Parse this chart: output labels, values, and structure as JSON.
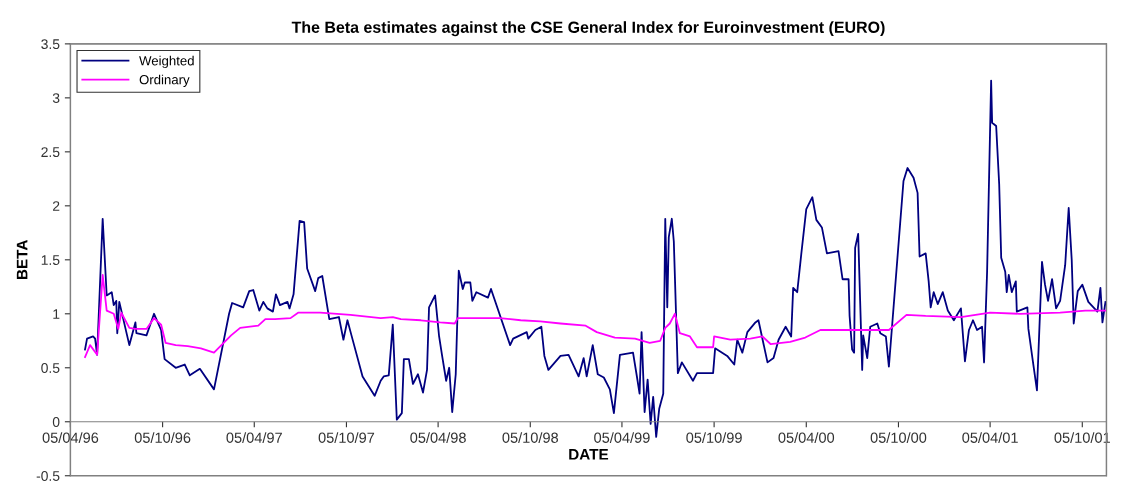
{
  "chart_data": {
    "type": "line",
    "title": "The Beta estimates against the CSE General Index for Euroinvestment (EURO)",
    "xlabel": "DATE",
    "ylabel": "BETA",
    "xlim": [
      "1996-04-05",
      "2001-11-22"
    ],
    "xticks": [
      {
        "value": "1996-04-05",
        "label": "05/04/96"
      },
      {
        "value": "1996-10-05",
        "label": "05/10/96"
      },
      {
        "value": "1997-04-05",
        "label": "05/04/97"
      },
      {
        "value": "1997-10-05",
        "label": "05/10/97"
      },
      {
        "value": "1998-04-05",
        "label": "05/04/98"
      },
      {
        "value": "1998-10-05",
        "label": "05/10/98"
      },
      {
        "value": "1999-04-05",
        "label": "05/04/99"
      },
      {
        "value": "1999-10-05",
        "label": "05/10/99"
      },
      {
        "value": "2000-04-05",
        "label": "05/04/00"
      },
      {
        "value": "2000-10-05",
        "label": "05/10/00"
      },
      {
        "value": "2001-04-05",
        "label": "05/04/01"
      },
      {
        "value": "2001-10-05",
        "label": "05/10/01"
      }
    ],
    "ylim": [
      -0.5,
      3.5
    ],
    "yticks": [
      -0.5,
      0,
      0.5,
      1,
      1.5,
      2,
      2.5,
      3,
      3.5
    ],
    "grid": false,
    "legend": "top left",
    "marker": "none",
    "line_style": "solid",
    "series": [
      {
        "name": "Weighted",
        "color": "#000080",
        "x": [
          "1996-05-04",
          "1996-05-08",
          "1996-05-20",
          "1996-05-24",
          "1996-05-28",
          "1996-06-08",
          "1996-06-16",
          "1996-06-26",
          "1996-06-30",
          "1996-07-05",
          "1996-07-07",
          "1996-07-11",
          "1996-07-31",
          "1996-08-12",
          "1996-08-14",
          "1996-09-03",
          "1996-09-18",
          "1996-10-02",
          "1996-10-09",
          "1996-10-31",
          "1996-11-18",
          "1996-11-28",
          "1996-12-18",
          "1997-01-15",
          "1997-02-14",
          "1997-02-20",
          "1997-03-14",
          "1997-03-26",
          "1997-04-03",
          "1997-04-15",
          "1997-04-23",
          "1997-05-01",
          "1997-05-12",
          "1997-05-18",
          "1997-05-26",
          "1997-06-10",
          "1997-06-14",
          "1997-06-22",
          "1997-07-04",
          "1997-07-13",
          "1997-07-19",
          "1997-08-04",
          "1997-08-10",
          "1997-08-18",
          "1997-09-01",
          "1997-09-20",
          "1997-09-29",
          "1997-10-07",
          "1997-10-15",
          "1997-11-06",
          "1997-11-30",
          "1997-12-12",
          "1997-12-18",
          "1997-12-28",
          "1998-01-05",
          "1998-01-13",
          "1998-01-23",
          "1998-01-27",
          "1998-02-06",
          "1998-02-14",
          "1998-02-24",
          "1998-03-06",
          "1998-03-14",
          "1998-03-18",
          "1998-03-30",
          "1998-04-07",
          "1998-04-13",
          "1998-04-21",
          "1998-04-27",
          "1998-05-03",
          "1998-05-10",
          "1998-05-16",
          "1998-05-24",
          "1998-05-28",
          "1998-06-08",
          "1998-06-12",
          "1998-06-20",
          "1998-07-13",
          "1998-07-19",
          "1998-08-26",
          "1998-09-01",
          "1998-09-28",
          "1998-10-01",
          "1998-10-15",
          "1998-10-27",
          "1998-11-02",
          "1998-11-10",
          "1998-12-04",
          "1998-12-20",
          "1999-01-09",
          "1999-01-19",
          "1999-01-25",
          "1999-02-06",
          "1999-02-16",
          "1999-02-28",
          "1999-03-12",
          "1999-03-20",
          "1999-04-01",
          "1999-04-27",
          "1999-05-05",
          "1999-05-10",
          "1999-05-14",
          "1999-05-20",
          "1999-05-26",
          "1999-06-01",
          "1999-06-06",
          "1999-06-12",
          "1999-06-18",
          "1999-06-26",
          "1999-06-30",
          "1999-07-04",
          "1999-07-07",
          "1999-07-13",
          "1999-07-17",
          "1999-07-25",
          "1999-08-02",
          "1999-08-24",
          "1999-09-01",
          "1999-10-03",
          "1999-10-07",
          "1999-10-31",
          "1999-11-14",
          "1999-11-20",
          "1999-11-30",
          "1999-12-10",
          "1999-12-26",
          "2000-01-01",
          "2000-01-19",
          "2000-01-31",
          "2000-02-10",
          "2000-02-24",
          "2000-03-06",
          "2000-03-10",
          "2000-03-18",
          "2000-03-26",
          "2000-04-05",
          "2000-04-17",
          "2000-04-25",
          "2000-05-06",
          "2000-05-16",
          "2000-06-08",
          "2000-06-16",
          "2000-06-28",
          "2000-06-30",
          "2000-07-05",
          "2000-07-09",
          "2000-07-11",
          "2000-07-17",
          "2000-07-25",
          "2000-07-27",
          "2000-08-04",
          "2000-08-10",
          "2000-08-24",
          "2000-08-30",
          "2000-09-10",
          "2000-09-16",
          "2000-10-15",
          "2000-10-23",
          "2000-11-04",
          "2000-11-12",
          "2000-11-16",
          "2000-11-28",
          "2000-12-04",
          "2000-12-08",
          "2000-12-14",
          "2000-12-22",
          "2001-01-01",
          "2001-01-11",
          "2001-01-23",
          "2001-02-06",
          "2001-02-14",
          "2001-02-22",
          "2001-03-02",
          "2001-03-10",
          "2001-03-20",
          "2001-03-24",
          "2001-03-30",
          "2001-04-07",
          "2001-04-09",
          "2001-04-17",
          "2001-04-23",
          "2001-04-27",
          "2001-05-05",
          "2001-05-08",
          "2001-05-12",
          "2001-05-18",
          "2001-05-26",
          "2001-05-28",
          "2001-06-18",
          "2001-06-20",
          "2001-06-28",
          "2001-07-07",
          "2001-07-17",
          "2001-07-23",
          "2001-07-29",
          "2001-08-06",
          "2001-08-14",
          "2001-08-22",
          "2001-09-01",
          "2001-09-08",
          "2001-09-14",
          "2001-09-18",
          "2001-09-26",
          "2001-10-05",
          "2001-10-17",
          "2001-11-04",
          "2001-11-10",
          "2001-11-14",
          "2001-11-20"
        ],
        "values": [
          0.67,
          0.77,
          0.79,
          0.77,
          0.62,
          1.88,
          1.17,
          1.2,
          1.08,
          1.12,
          0.82,
          1.11,
          0.71,
          0.92,
          0.82,
          0.8,
          1.0,
          0.85,
          0.58,
          0.5,
          0.53,
          0.43,
          0.49,
          0.3,
          1.0,
          1.1,
          1.06,
          1.21,
          1.22,
          1.03,
          1.11,
          1.05,
          1.02,
          1.18,
          1.08,
          1.11,
          1.05,
          1.18,
          1.86,
          1.85,
          1.42,
          1.21,
          1.33,
          1.35,
          0.95,
          0.97,
          0.76,
          0.94,
          0.8,
          0.42,
          0.24,
          0.38,
          0.42,
          0.43,
          0.9,
          0.02,
          0.08,
          0.58,
          0.58,
          0.35,
          0.44,
          0.27,
          0.48,
          1.06,
          1.17,
          0.79,
          0.61,
          0.38,
          0.5,
          0.09,
          0.44,
          1.4,
          1.23,
          1.29,
          1.29,
          1.12,
          1.2,
          1.15,
          1.23,
          0.71,
          0.77,
          0.83,
          0.77,
          0.85,
          0.88,
          0.61,
          0.48,
          0.61,
          0.62,
          0.42,
          0.59,
          0.42,
          0.71,
          0.44,
          0.41,
          0.3,
          0.08,
          0.62,
          0.64,
          0.41,
          0.26,
          0.83,
          0.09,
          0.39,
          -0.02,
          0.23,
          -0.14,
          0.12,
          0.26,
          1.88,
          1.06,
          1.71,
          1.88,
          1.67,
          0.45,
          0.55,
          0.38,
          0.45,
          0.45,
          0.68,
          0.61,
          0.53,
          0.76,
          0.64,
          0.83,
          0.92,
          0.94,
          0.55,
          0.59,
          0.76,
          0.88,
          0.79,
          1.24,
          1.2,
          1.55,
          1.97,
          2.08,
          1.87,
          1.8,
          1.56,
          1.58,
          1.32,
          1.32,
          0.98,
          0.67,
          0.64,
          1.61,
          1.74,
          0.48,
          0.8,
          0.59,
          0.88,
          0.91,
          0.82,
          0.79,
          0.51,
          2.23,
          2.35,
          2.26,
          2.12,
          1.53,
          1.56,
          1.3,
          1.06,
          1.2,
          1.09,
          1.2,
          1.03,
          0.94,
          1.05,
          0.56,
          0.85,
          0.94,
          0.85,
          0.88,
          0.55,
          1.39,
          3.16,
          2.77,
          2.74,
          2.2,
          1.52,
          1.39,
          1.2,
          1.36,
          1.2,
          1.3,
          1.02,
          1.06,
          0.86,
          0.59,
          0.29,
          1.48,
          1.27,
          1.12,
          1.32,
          1.05,
          1.12,
          1.45,
          1.98,
          1.5,
          0.91,
          1.21,
          1.27,
          1.11,
          1.02,
          1.24,
          0.92,
          1.11
        ]
      },
      {
        "name": "Ordinary",
        "color": "#ff00ff",
        "x": [
          "1996-05-04",
          "1996-05-14",
          "1996-05-28",
          "1996-06-08",
          "1996-06-16",
          "1996-06-30",
          "1996-07-09",
          "1996-07-15",
          "1996-07-31",
          "1996-08-12",
          "1996-09-03",
          "1996-09-18",
          "1996-10-02",
          "1996-10-11",
          "1996-10-31",
          "1996-11-24",
          "1996-12-20",
          "1997-01-15",
          "1997-02-18",
          "1997-03-08",
          "1997-04-13",
          "1997-04-27",
          "1997-05-16",
          "1997-06-16",
          "1997-07-01",
          "1997-08-14",
          "1997-10-13",
          "1997-12-12",
          "1998-01-05",
          "1998-01-21",
          "1998-03-02",
          "1998-04-09",
          "1998-05-08",
          "1998-05-14",
          "1998-06-28",
          "1998-08-06",
          "1998-09-16",
          "1998-10-25",
          "1998-12-04",
          "1999-01-23",
          "1999-02-14",
          "1999-03-22",
          "1999-05-01",
          "1999-05-30",
          "1999-06-20",
          "1999-06-30",
          "1999-07-09",
          "1999-07-19",
          "1999-07-29",
          "1999-08-18",
          "1999-09-01",
          "1999-10-03",
          "1999-10-05",
          "1999-11-06",
          "1999-12-16",
          "2000-01-09",
          "2000-01-25",
          "2000-03-04",
          "2000-04-03",
          "2000-05-03",
          "2000-07-01",
          "2000-08-10",
          "2000-09-16",
          "2000-10-21",
          "2000-11-28",
          "2001-02-06",
          "2001-04-05",
          "2001-06-03",
          "2001-08-22",
          "2001-10-11",
          "2001-11-20"
        ],
        "values": [
          0.6,
          0.71,
          0.62,
          1.36,
          1.03,
          1.0,
          0.86,
          1.01,
          0.87,
          0.86,
          0.86,
          0.96,
          0.9,
          0.73,
          0.71,
          0.7,
          0.68,
          0.64,
          0.8,
          0.87,
          0.89,
          0.95,
          0.95,
          0.96,
          1.01,
          1.01,
          0.99,
          0.96,
          0.97,
          0.95,
          0.94,
          0.92,
          0.91,
          0.96,
          0.96,
          0.96,
          0.94,
          0.93,
          0.91,
          0.89,
          0.83,
          0.78,
          0.77,
          0.73,
          0.75,
          0.87,
          0.91,
          1.0,
          0.82,
          0.79,
          0.69,
          0.69,
          0.79,
          0.76,
          0.77,
          0.79,
          0.72,
          0.74,
          0.78,
          0.85,
          0.85,
          0.85,
          0.85,
          0.99,
          0.98,
          0.97,
          1.01,
          1.0,
          1.01,
          1.03,
          1.03
        ]
      }
    ]
  }
}
